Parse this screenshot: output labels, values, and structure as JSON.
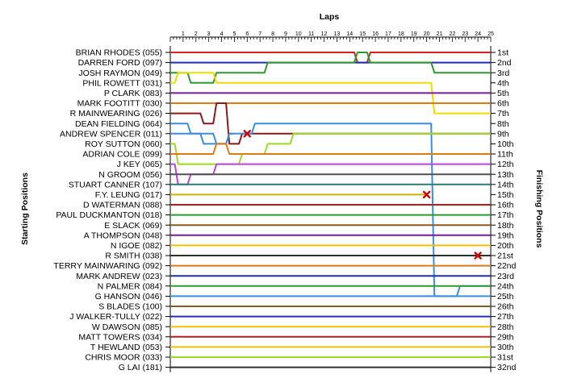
{
  "chart_data": {
    "type": "line",
    "title": "",
    "xlabel": "Laps",
    "ylabel_left": "Starting Positions",
    "ylabel_right": "Finishing Positions",
    "x_ticks": [
      "1",
      "2",
      "3",
      "4",
      "5",
      "6",
      "7",
      "8",
      "9",
      "10",
      "11",
      "12",
      "13",
      "14",
      "15",
      "16",
      "17",
      "18",
      "19",
      "20",
      "21",
      "22",
      "23",
      "24",
      "25"
    ],
    "x_range": [
      0,
      25
    ],
    "drivers": [
      "BRIAN RHODES (055)",
      "DARREN FORD (097)",
      "JOSH RAYMON (049)",
      "PHIL ROWETT (031)",
      "P CLARK (083)",
      "MARK FOOTITT (030)",
      "R MAINWEARING (026)",
      "DEAN FIELDING (064)",
      "ANDREW SPENCER (011)",
      "ROY SUTTON (060)",
      "ADRIAN COLE (099)",
      "J KEY (065)",
      "N GROOM (056)",
      "STUART CANNER (107)",
      "F.Y. LEUNG (017)",
      "D WATERMAN (088)",
      "PAUL DUCKMANTON (018)",
      "E SLACK (069)",
      "A THOMPSON (048)",
      "N IGOE (082)",
      "R SMITH (038)",
      "TERRY MAINWARING (092)",
      "MARK ANDREW (023)",
      "N PALMER (084)",
      "G HANSON (046)",
      "S BLADES (100)",
      "J WALKER-TULLY (022)",
      "W DAWSON (085)",
      "MATT TOWERS (034)",
      "T HEWLAND (053)",
      "CHRIS MOOR (033)",
      "G LAI (181)"
    ],
    "finishing_labels": [
      "1st",
      "2nd",
      "3rd",
      "4th",
      "5th",
      "6th",
      "7th",
      "8th",
      "9th",
      "10th",
      "11th",
      "12th",
      "13th",
      "14th",
      "15th",
      "16th",
      "17th",
      "18th",
      "19th",
      "20th",
      "21st",
      "22nd",
      "23rd",
      "24th",
      "25th",
      "26th",
      "27th",
      "28th",
      "29th",
      "30th",
      "31st",
      "32nd"
    ],
    "series": [
      {
        "color": "#dc2020",
        "values": [
          1,
          1,
          1,
          1,
          1,
          1,
          1,
          1,
          1,
          1,
          1,
          1,
          1,
          1,
          1,
          2,
          1,
          1,
          1,
          1,
          1,
          1,
          1,
          1,
          1,
          1
        ]
      },
      {
        "color": "#1e2eb8",
        "values": [
          2,
          2,
          2,
          2,
          2,
          2,
          2,
          2,
          2,
          2,
          2,
          2,
          2,
          2,
          2,
          2,
          2,
          2,
          2,
          2,
          2,
          2,
          2,
          2,
          2,
          2
        ]
      },
      {
        "color": "#2e9a2e",
        "values": [
          3,
          3,
          4,
          4,
          3,
          3,
          3,
          3,
          2,
          2,
          2,
          2,
          2,
          2,
          2,
          1,
          2,
          2,
          2,
          2,
          2,
          3,
          3,
          3,
          3,
          3
        ]
      },
      {
        "color": "#f0dc00",
        "values": [
          4,
          3,
          3,
          3,
          4,
          4,
          4,
          4,
          4,
          4,
          4,
          4,
          4,
          4,
          4,
          4,
          4,
          4,
          4,
          4,
          4,
          7,
          7,
          7,
          7,
          7
        ]
      },
      {
        "color": "#7a1a9a",
        "values": [
          5,
          5,
          5,
          5,
          5,
          5,
          5,
          5,
          5,
          5,
          5,
          5,
          5,
          5,
          5,
          5,
          5,
          5,
          5,
          5,
          5,
          5,
          5,
          5,
          5,
          5
        ]
      },
      {
        "color": "#e07a10",
        "values": [
          6,
          6,
          6,
          6,
          6,
          6,
          6,
          6,
          6,
          6,
          6,
          6,
          6,
          6,
          6,
          6,
          6,
          6,
          6,
          6,
          6,
          6,
          6,
          6,
          6,
          6
        ]
      },
      {
        "color": "#8a1a1a",
        "values": [
          7,
          7,
          7,
          8,
          6,
          10,
          9,
          9,
          9,
          9,
          9,
          9,
          9,
          9,
          9,
          9,
          9,
          9,
          9,
          9,
          9,
          9,
          9,
          9,
          9,
          9
        ]
      },
      {
        "color": "#3a8ee0",
        "values": [
          8,
          8,
          9,
          9,
          10,
          9,
          9,
          8,
          8,
          8,
          8,
          8,
          8,
          8,
          8,
          8,
          8,
          8,
          8,
          8,
          8,
          25,
          25,
          24,
          24,
          24
        ]
      },
      {
        "color": "#3a8ee0",
        "values": [
          9,
          9,
          9,
          10,
          10,
          9,
          null,
          null,
          null,
          null,
          null,
          null,
          null,
          null,
          null,
          null,
          null,
          null,
          null,
          null,
          null,
          null,
          null,
          null,
          null,
          null
        ]
      },
      {
        "color": "#9adc20",
        "values": [
          10,
          12,
          12,
          12,
          12,
          12,
          11,
          11,
          10,
          10,
          9,
          9,
          9,
          9,
          9,
          9,
          9,
          9,
          9,
          9,
          9,
          9,
          9,
          9,
          9,
          9
        ]
      },
      {
        "color": "#e07a10",
        "values": [
          11,
          11,
          11,
          11,
          10,
          11,
          11,
          11,
          11,
          11,
          11,
          11,
          11,
          11,
          11,
          11,
          11,
          11,
          11,
          11,
          11,
          11,
          11,
          11,
          11,
          11
        ]
      },
      {
        "color": "#c040e0",
        "values": [
          12,
          14,
          13,
          13,
          12,
          12,
          12,
          12,
          12,
          12,
          12,
          12,
          12,
          12,
          12,
          12,
          12,
          12,
          12,
          12,
          12,
          12,
          12,
          12,
          12,
          12
        ]
      },
      {
        "color": "#505050",
        "values": [
          13,
          13,
          13,
          13,
          13,
          13,
          13,
          13,
          13,
          13,
          13,
          13,
          13,
          13,
          13,
          13,
          13,
          13,
          13,
          13,
          13,
          13,
          13,
          13,
          13,
          13
        ]
      },
      {
        "color": "#2a7a7a",
        "values": [
          14,
          14,
          14,
          14,
          14,
          14,
          14,
          14,
          14,
          14,
          14,
          14,
          14,
          14,
          14,
          14,
          14,
          14,
          14,
          14,
          14,
          14,
          14,
          14,
          14,
          14
        ]
      },
      {
        "color": "#c8b400",
        "values": [
          15,
          15,
          15,
          15,
          15,
          15,
          15,
          15,
          15,
          15,
          15,
          15,
          15,
          15,
          15,
          15,
          15,
          15,
          15,
          15,
          15,
          null,
          null,
          null,
          null,
          null
        ]
      },
      {
        "color": "#c01818",
        "values": [
          16,
          16,
          16,
          16,
          16,
          16,
          16,
          16,
          16,
          16,
          16,
          16,
          16,
          16,
          16,
          16,
          16,
          16,
          16,
          16,
          16,
          16,
          16,
          16,
          16,
          16
        ]
      },
      {
        "color": "#2e9a2e",
        "values": [
          17,
          17,
          17,
          17,
          17,
          17,
          17,
          17,
          17,
          17,
          17,
          17,
          17,
          17,
          17,
          17,
          17,
          17,
          17,
          17,
          17,
          17,
          17,
          17,
          17,
          17
        ]
      },
      {
        "color": "#8a5a20",
        "values": [
          18,
          18,
          18,
          18,
          18,
          18,
          18,
          18,
          18,
          18,
          18,
          18,
          18,
          18,
          18,
          18,
          18,
          18,
          18,
          18,
          18,
          18,
          18,
          18,
          18,
          18
        ]
      },
      {
        "color": "#7a1a9a",
        "values": [
          19,
          19,
          19,
          19,
          19,
          19,
          19,
          19,
          19,
          19,
          19,
          19,
          19,
          19,
          19,
          19,
          19,
          19,
          19,
          19,
          19,
          19,
          19,
          19,
          19,
          19
        ]
      },
      {
        "color": "#f0c000",
        "values": [
          20,
          20,
          20,
          20,
          20,
          20,
          20,
          20,
          20,
          20,
          20,
          20,
          20,
          20,
          20,
          20,
          20,
          20,
          20,
          20,
          20,
          20,
          20,
          20,
          20,
          20
        ]
      },
      {
        "color": "#303030",
        "values": [
          21,
          21,
          21,
          21,
          21,
          21,
          21,
          21,
          21,
          21,
          21,
          21,
          21,
          21,
          21,
          21,
          21,
          21,
          21,
          21,
          21,
          21,
          21,
          21,
          21,
          21
        ]
      },
      {
        "color": "#e07a10",
        "values": [
          22,
          22,
          22,
          22,
          22,
          22,
          22,
          22,
          22,
          22,
          22,
          22,
          22,
          22,
          22,
          22,
          22,
          22,
          22,
          22,
          22,
          22,
          22,
          22,
          22,
          22
        ]
      },
      {
        "color": "#1e2eb8",
        "values": [
          23,
          23,
          23,
          23,
          23,
          23,
          23,
          23,
          23,
          23,
          23,
          23,
          23,
          23,
          23,
          23,
          23,
          23,
          23,
          23,
          23,
          23,
          23,
          23,
          23,
          23
        ]
      },
      {
        "color": "#2e9a2e",
        "values": [
          24,
          24,
          24,
          24,
          24,
          24,
          24,
          24,
          24,
          24,
          24,
          24,
          24,
          24,
          24,
          24,
          24,
          24,
          24,
          24,
          24,
          24,
          24,
          24,
          24,
          24
        ]
      },
      {
        "color": "#3a8ee0",
        "values": [
          25,
          25,
          25,
          25,
          25,
          25,
          25,
          25,
          25,
          25,
          25,
          25,
          25,
          25,
          25,
          25,
          25,
          25,
          25,
          25,
          25,
          25,
          25,
          25,
          25,
          25
        ]
      },
      {
        "color": "#8a5a20",
        "values": [
          26,
          26,
          26,
          26,
          26,
          26,
          26,
          26,
          26,
          26,
          26,
          26,
          26,
          26,
          26,
          26,
          26,
          26,
          26,
          26,
          26,
          26,
          26,
          26,
          26,
          26
        ]
      },
      {
        "color": "#1e2eb8",
        "values": [
          27,
          27,
          27,
          27,
          27,
          27,
          27,
          27,
          27,
          27,
          27,
          27,
          27,
          27,
          27,
          27,
          27,
          27,
          27,
          27,
          27,
          27,
          27,
          27,
          27,
          27
        ]
      },
      {
        "color": "#f0c000",
        "values": [
          28,
          28,
          28,
          28,
          28,
          28,
          28,
          28,
          28,
          28,
          28,
          28,
          28,
          28,
          28,
          28,
          28,
          28,
          28,
          28,
          28,
          28,
          28,
          28,
          28,
          28
        ]
      },
      {
        "color": "#c01818",
        "values": [
          29,
          29,
          29,
          29,
          29,
          29,
          29,
          29,
          29,
          29,
          29,
          29,
          29,
          29,
          29,
          29,
          29,
          29,
          29,
          29,
          29,
          29,
          29,
          29,
          29,
          29
        ]
      },
      {
        "color": "#f0c000",
        "values": [
          30,
          30,
          30,
          30,
          30,
          30,
          30,
          30,
          30,
          30,
          30,
          30,
          30,
          30,
          30,
          30,
          30,
          30,
          30,
          30,
          30,
          30,
          30,
          30,
          30,
          30
        ]
      },
      {
        "color": "#9adc20",
        "values": [
          31,
          31,
          31,
          31,
          31,
          31,
          31,
          31,
          31,
          31,
          31,
          31,
          31,
          31,
          31,
          31,
          31,
          31,
          31,
          31,
          31,
          31,
          31,
          31,
          31,
          31
        ]
      },
      {
        "color": "#303030",
        "values": [
          32,
          32,
          32,
          32,
          32,
          32,
          32,
          32,
          32,
          32,
          32,
          32,
          32,
          32,
          32,
          32,
          32,
          32,
          32,
          32,
          32,
          32,
          32,
          32,
          32,
          32
        ]
      }
    ],
    "retirements": [
      {
        "lap": 6,
        "position": 9
      },
      {
        "lap": 20,
        "position": 15
      },
      {
        "lap": 24,
        "position": 21
      }
    ]
  }
}
